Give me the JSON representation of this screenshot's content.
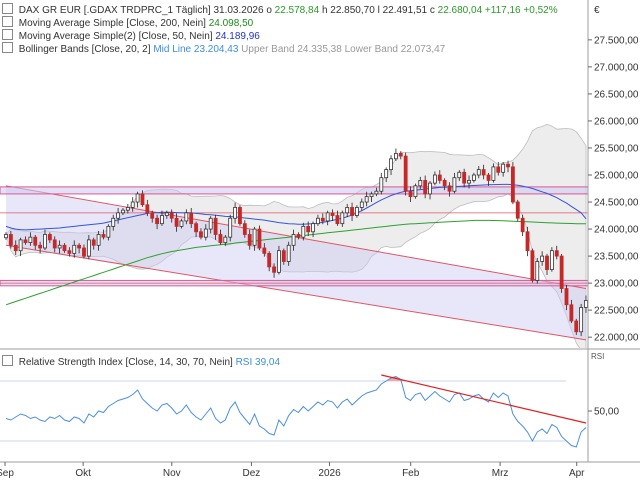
{
  "header": {
    "instrument": "DAX GR EUR [.GDAX TRDPRC_1 Täglich]",
    "date": "31.03.2026",
    "open_label": "o",
    "open": "22.578,84",
    "high_label": "h",
    "high": "22.850,70",
    "low_label": "l",
    "low": "22.491,51",
    "close_label": "c",
    "close": "22.680,04",
    "change": "+117,16",
    "change_pct": "+0,52%"
  },
  "legend": {
    "ma200_label": "Moving Average Simple [Close, 200, Nein]",
    "ma200_value": "24.098,50",
    "ma50_label": "Moving Average Simple(2) [Close, 50, Nein]",
    "ma50_value": "24.189,96",
    "bb_label": "Bollinger Bands [Close, 20, 2]",
    "bb_mid": "Mid Line 23.204,43",
    "bb_upper": "Upper Band 24.335,38",
    "bb_lower": "Lower Band 22.073,47"
  },
  "rsi_legend": {
    "label": "Relative Strength Index [Close, 14, 30, 70, Nein]",
    "value": "RSI 39,04"
  },
  "currency_symbol": "€",
  "rsi_axis_name": "RSI",
  "colors": {
    "bull": "#2e7d32",
    "bear": "#c62828",
    "ma200": "#2ea02e",
    "ma50": "#3355dd",
    "bollinger": "#bdbdbd",
    "channel_fill": "#c9c9f2",
    "channel_line": "#e05565",
    "horizontal_band": "#e05590",
    "rsi_line": "#4a90e2",
    "rsi_trend": "#e02020"
  },
  "chart_data": [
    {
      "type": "candlestick",
      "ylim": [
        21800,
        28200
      ],
      "y_ticks": [
        "22.000,00",
        "22.500,00",
        "23.000,00",
        "23.500,00",
        "24.000,00",
        "24.500,00",
        "25.000,00",
        "25.500,00",
        "26.000,00",
        "26.500,00",
        "27.000,00",
        "27.500,00"
      ],
      "y_tick_values": [
        22000,
        22500,
        23000,
        23500,
        24000,
        24500,
        25000,
        25500,
        26000,
        26500,
        27000,
        27500
      ],
      "x_labels": [
        "Sep",
        "Okt",
        "Nov",
        "Dez",
        "2026",
        "Feb",
        "Mrz",
        "Apr"
      ],
      "closes": [
        23900,
        23700,
        23600,
        23800,
        23750,
        23850,
        23700,
        23650,
        23900,
        23800,
        23650,
        23700,
        23600,
        23550,
        23700,
        23650,
        23500,
        23800,
        23700,
        23900,
        23850,
        24050,
        24200,
        24300,
        24350,
        24400,
        24500,
        24650,
        24450,
        24300,
        24200,
        24100,
        24250,
        24300,
        24200,
        24050,
        24150,
        24300,
        24100,
        23950,
        23850,
        24000,
        24200,
        23900,
        23750,
        23850,
        24200,
        24400,
        24100,
        23900,
        23700,
        24000,
        23650,
        23550,
        23300,
        23200,
        23600,
        23400,
        23700,
        23900,
        23850,
        24050,
        23950,
        24100,
        24200,
        24150,
        24300,
        24250,
        24100,
        24300,
        24400,
        24250,
        24400,
        24500,
        24600,
        24650,
        24700,
        24950,
        25100,
        25300,
        25400,
        25350,
        24700,
        24600,
        24800,
        24900,
        24650,
        24850,
        25000,
        24900,
        24800,
        24700,
        24950,
        25050,
        24850,
        24900,
        25000,
        25100,
        25000,
        24900,
        25150,
        25050,
        25200,
        25150,
        24500,
        24200,
        23950,
        23600,
        23050,
        23400,
        23500,
        23250,
        23600,
        23500,
        22900,
        22600,
        22300,
        22100,
        22550,
        22680
      ],
      "ma50_values": [
        24050,
        24020,
        24000,
        23990,
        23985,
        23990,
        23995,
        24000,
        24005,
        24010,
        24015,
        24020,
        24030,
        24040,
        24050,
        24060,
        24070,
        24080,
        24090,
        24100,
        24110,
        24130,
        24150,
        24170,
        24190,
        24210,
        24230,
        24250,
        24270,
        24290,
        24300,
        24305,
        24310,
        24310,
        24310,
        24305,
        24300,
        24300,
        24300,
        24290,
        24280,
        24270,
        24265,
        24255,
        24245,
        24235,
        24230,
        24225,
        24215,
        24205,
        24195,
        24185,
        24175,
        24165,
        24150,
        24135,
        24120,
        24110,
        24100,
        24095,
        24090,
        24090,
        24095,
        24100,
        24110,
        24125,
        24140,
        24160,
        24180,
        24200,
        24230,
        24260,
        24300,
        24340,
        24390,
        24440,
        24490,
        24540,
        24580,
        24620,
        24650,
        24680,
        24700,
        24710,
        24720,
        24730,
        24740,
        24750,
        24760,
        24770,
        24775,
        24780,
        24785,
        24790,
        24795,
        24800,
        24805,
        24810,
        24815,
        24820,
        24822,
        24824,
        24826,
        24826,
        24820,
        24810,
        24795,
        24775,
        24750,
        24720,
        24690,
        24660,
        24620,
        24580,
        24530,
        24480,
        24420,
        24360,
        24300,
        24190
      ],
      "ma200_values": [
        22600,
        22630,
        22660,
        22690,
        22720,
        22750,
        22780,
        22810,
        22840,
        22870,
        22900,
        22930,
        22960,
        22990,
        23020,
        23050,
        23080,
        23110,
        23140,
        23170,
        23200,
        23230,
        23260,
        23290,
        23320,
        23350,
        23380,
        23410,
        23440,
        23470,
        23495,
        23520,
        23545,
        23565,
        23585,
        23600,
        23615,
        23630,
        23645,
        23660,
        23670,
        23680,
        23690,
        23700,
        23710,
        23720,
        23730,
        23740,
        23750,
        23760,
        23770,
        23780,
        23790,
        23800,
        23810,
        23820,
        23830,
        23840,
        23850,
        23860,
        23870,
        23880,
        23890,
        23900,
        23910,
        23920,
        23930,
        23940,
        23950,
        23960,
        23970,
        23980,
        23990,
        24000,
        24010,
        24020,
        24030,
        24040,
        24050,
        24060,
        24070,
        24080,
        24090,
        24095,
        24100,
        24105,
        24110,
        24115,
        24120,
        24125,
        24130,
        24135,
        24140,
        24145,
        24150,
        24155,
        24160,
        24160,
        24160,
        24160,
        24158,
        24156,
        24154,
        24150,
        24146,
        24142,
        24138,
        24134,
        24130,
        24126,
        24122,
        24118,
        24114,
        24110,
        24106,
        24104,
        24102,
        24100,
        24099,
        24098
      ],
      "channel": {
        "upper": [
          [
            0,
            24800
          ],
          [
            119,
            22900
          ]
        ],
        "lower": [
          [
            0,
            23700
          ],
          [
            119,
            21950
          ]
        ]
      },
      "horizontal_bands": [
        [
          24650,
          24780
        ],
        [
          22950,
          23050
        ]
      ],
      "horizontal_lines": [
        24300,
        23000
      ]
    },
    {
      "type": "line",
      "name": "RSI",
      "ylim": [
        20,
        80
      ],
      "y_ticks": [
        "50,00"
      ],
      "y_tick_values": [
        50
      ],
      "levels": [
        30,
        70
      ],
      "values": [
        45,
        44,
        46,
        48,
        47,
        45,
        46,
        44,
        43,
        46,
        45,
        47,
        44,
        43,
        46,
        45,
        42,
        48,
        46,
        50,
        49,
        53,
        55,
        57,
        58,
        59,
        61,
        64,
        58,
        55,
        52,
        50,
        54,
        55,
        52,
        48,
        50,
        54,
        49,
        46,
        44,
        48,
        52,
        45,
        42,
        44,
        52,
        56,
        49,
        45,
        41,
        48,
        40,
        38,
        35,
        34,
        44,
        40,
        47,
        51,
        49,
        53,
        50,
        53,
        56,
        54,
        57,
        56,
        52,
        56,
        58,
        54,
        57,
        60,
        62,
        63,
        64,
        68,
        70,
        72,
        73,
        71,
        59,
        57,
        61,
        62,
        57,
        60,
        63,
        60,
        58,
        56,
        61,
        62,
        57,
        58,
        60,
        61,
        58,
        56,
        62,
        59,
        62,
        60,
        48,
        43,
        40,
        36,
        30,
        36,
        38,
        35,
        41,
        39,
        33,
        30,
        27,
        26,
        36,
        39
      ]
    }
  ]
}
